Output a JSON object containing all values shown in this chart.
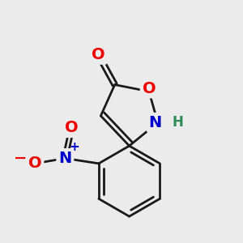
{
  "background_color": "#ebebeb",
  "bond_color": "#1a1a1a",
  "bond_width": 2.0,
  "atom_colors": {
    "O": "#ee0000",
    "N": "#0000cc",
    "H": "#2e8b57",
    "C": "#1a1a1a"
  },
  "font_size_atom": 14,
  "font_size_small": 11
}
